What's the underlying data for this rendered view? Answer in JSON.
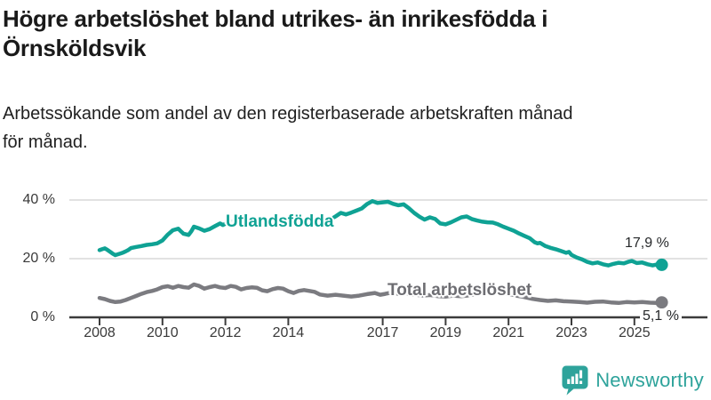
{
  "header": {
    "title_lines": [
      "Högre arbetslöshet bland utrikes- än inrikesfödda i",
      "Örnsköldsvik"
    ],
    "subtitle_lines": [
      "Arbetssökande som andel av den registerbaserade arbetskraften månad",
      "för månad."
    ]
  },
  "chart_data": {
    "type": "line",
    "title": "Högre arbetslöshet bland utrikes- än inrikesfödda i Örnsköldsvik",
    "subtitle": "Arbetssökande som andel av den registerbaserade arbetskraften månad för månad.",
    "x_unit": "år (månadsdata)",
    "y_unit": "% av den registerbaserade arbetskraften",
    "ylim": [
      0,
      42
    ],
    "xlim": [
      2007.9,
      2025.9
    ],
    "grid": "horizontal",
    "legend_position": "inline-labels",
    "x_ticks": [
      {
        "year": 2008,
        "label": "2008"
      },
      {
        "year": 2010,
        "label": "2010"
      },
      {
        "year": 2012,
        "label": "2012"
      },
      {
        "year": 2014,
        "label": "2014"
      },
      {
        "year": 2017,
        "label": "2017"
      },
      {
        "year": 2019,
        "label": "2019"
      },
      {
        "year": 2021,
        "label": "2021"
      },
      {
        "year": 2023,
        "label": "2023"
      },
      {
        "year": 2025,
        "label": "2025"
      }
    ],
    "y_ticks": [
      {
        "value": 0,
        "label": "0 %"
      },
      {
        "value": 20,
        "label": "20 %"
      },
      {
        "value": 40,
        "label": "40 %"
      }
    ],
    "series": [
      {
        "name": "Utlandsfödda",
        "color": "#0fa294",
        "end_label": "17,9 %",
        "end_value": 17.9,
        "points": [
          [
            2008,
            22.9
          ],
          [
            2008.08,
            23.2
          ],
          [
            2008.17,
            23.5
          ],
          [
            2008.25,
            23
          ],
          [
            2008.33,
            22.4
          ],
          [
            2008.42,
            21.7
          ],
          [
            2008.5,
            21.2
          ],
          [
            2008.58,
            21.5
          ],
          [
            2008.67,
            21.8
          ],
          [
            2008.75,
            22.1
          ],
          [
            2008.83,
            22.5
          ],
          [
            2008.92,
            23
          ],
          [
            2009,
            23.6
          ],
          [
            2009.17,
            24
          ],
          [
            2009.33,
            24.3
          ],
          [
            2009.5,
            24.7
          ],
          [
            2009.67,
            24.9
          ],
          [
            2009.83,
            25.2
          ],
          [
            2010,
            26.2
          ],
          [
            2010.17,
            28.2
          ],
          [
            2010.33,
            29.7
          ],
          [
            2010.5,
            30.2
          ],
          [
            2010.58,
            29.4
          ],
          [
            2010.67,
            28.5
          ],
          [
            2010.83,
            28.1
          ],
          [
            2010.92,
            29.4
          ],
          [
            2011,
            30.9
          ],
          [
            2011.17,
            30.3
          ],
          [
            2011.33,
            29.5
          ],
          [
            2011.5,
            30.1
          ],
          [
            2011.67,
            31.1
          ],
          [
            2011.83,
            32
          ],
          [
            2011.92,
            31.5
          ],
          [
            2012,
            31.9
          ],
          [
            2012.17,
            32.5
          ],
          [
            2012.33,
            33.1
          ],
          [
            2012.5,
            32.6
          ],
          [
            2012.67,
            32.1
          ],
          [
            2012.83,
            31.7
          ],
          [
            2013,
            31.4
          ],
          [
            2013.25,
            31.9
          ],
          [
            2013.5,
            31.6
          ],
          [
            2013.75,
            32.1
          ],
          [
            2014,
            31.9
          ],
          [
            2014.25,
            32.4
          ],
          [
            2014.5,
            32.8
          ],
          [
            2014.75,
            32.2
          ],
          [
            2015,
            31.8
          ],
          [
            2015.25,
            32.8
          ],
          [
            2015.5,
            34.4
          ],
          [
            2015.67,
            35.6
          ],
          [
            2015.83,
            35.1
          ],
          [
            2016,
            35.7
          ],
          [
            2016.17,
            36.4
          ],
          [
            2016.33,
            37.1
          ],
          [
            2016.5,
            38.6
          ],
          [
            2016.67,
            39.6
          ],
          [
            2016.83,
            39
          ],
          [
            2017,
            39.2
          ],
          [
            2017.17,
            39.4
          ],
          [
            2017.33,
            38.7
          ],
          [
            2017.5,
            38.2
          ],
          [
            2017.67,
            38.5
          ],
          [
            2017.83,
            37.2
          ],
          [
            2018,
            35.6
          ],
          [
            2018.17,
            34.3
          ],
          [
            2018.33,
            33.3
          ],
          [
            2018.5,
            34.1
          ],
          [
            2018.67,
            33.5
          ],
          [
            2018.83,
            32
          ],
          [
            2019,
            31.7
          ],
          [
            2019.17,
            32.4
          ],
          [
            2019.33,
            33.2
          ],
          [
            2019.5,
            34.1
          ],
          [
            2019.67,
            34.4
          ],
          [
            2019.83,
            33.5
          ],
          [
            2020,
            33
          ],
          [
            2020.17,
            32.6
          ],
          [
            2020.33,
            32.4
          ],
          [
            2020.5,
            32.3
          ],
          [
            2020.67,
            31.7
          ],
          [
            2020.83,
            30.9
          ],
          [
            2021,
            30.2
          ],
          [
            2021.17,
            29.5
          ],
          [
            2021.33,
            28.6
          ],
          [
            2021.5,
            27.8
          ],
          [
            2021.67,
            27
          ],
          [
            2021.83,
            25.6
          ],
          [
            2021.92,
            25.2
          ],
          [
            2022,
            25.4
          ],
          [
            2022.17,
            24.3
          ],
          [
            2022.33,
            23.7
          ],
          [
            2022.5,
            23.2
          ],
          [
            2022.67,
            22.6
          ],
          [
            2022.83,
            22
          ],
          [
            2022.92,
            22.3
          ],
          [
            2023,
            21.3
          ],
          [
            2023.17,
            20.4
          ],
          [
            2023.33,
            19.8
          ],
          [
            2023.5,
            18.9
          ],
          [
            2023.67,
            18.4
          ],
          [
            2023.83,
            18.7
          ],
          [
            2024,
            18.1
          ],
          [
            2024.17,
            17.7
          ],
          [
            2024.33,
            18.2
          ],
          [
            2024.5,
            18.6
          ],
          [
            2024.67,
            18.4
          ],
          [
            2024.83,
            19
          ],
          [
            2024.92,
            19.2
          ],
          [
            2025.08,
            18.5
          ],
          [
            2025.25,
            18.7
          ],
          [
            2025.42,
            18.1
          ],
          [
            2025.58,
            17.7
          ],
          [
            2025.75,
            18.1
          ],
          [
            2025.87,
            17.9
          ]
        ]
      },
      {
        "name": "Total arbetslöshet",
        "color": "#7b7b80",
        "label_color": "#6d6d72",
        "end_label": "5,1 %",
        "end_value": 5.1,
        "points": [
          [
            2008,
            6.6
          ],
          [
            2008.17,
            6.2
          ],
          [
            2008.33,
            5.6
          ],
          [
            2008.5,
            5.2
          ],
          [
            2008.67,
            5.4
          ],
          [
            2008.83,
            5.9
          ],
          [
            2009,
            6.6
          ],
          [
            2009.17,
            7.3
          ],
          [
            2009.33,
            8
          ],
          [
            2009.5,
            8.6
          ],
          [
            2009.67,
            9
          ],
          [
            2009.83,
            9.5
          ],
          [
            2010,
            10.3
          ],
          [
            2010.17,
            10.6
          ],
          [
            2010.33,
            10.1
          ],
          [
            2010.5,
            10.7
          ],
          [
            2010.67,
            10.3
          ],
          [
            2010.83,
            10.1
          ],
          [
            2011,
            11.2
          ],
          [
            2011.17,
            10.7
          ],
          [
            2011.33,
            9.8
          ],
          [
            2011.5,
            10.3
          ],
          [
            2011.67,
            10.7
          ],
          [
            2011.83,
            10.2
          ],
          [
            2012,
            10
          ],
          [
            2012.17,
            10.7
          ],
          [
            2012.33,
            10.4
          ],
          [
            2012.5,
            9.5
          ],
          [
            2012.67,
            10
          ],
          [
            2012.83,
            10.2
          ],
          [
            2013,
            10.1
          ],
          [
            2013.17,
            9.2
          ],
          [
            2013.33,
            8.9
          ],
          [
            2013.5,
            9.6
          ],
          [
            2013.67,
            10
          ],
          [
            2013.83,
            9.8
          ],
          [
            2014,
            8.9
          ],
          [
            2014.17,
            8.3
          ],
          [
            2014.33,
            9
          ],
          [
            2014.5,
            9.3
          ],
          [
            2014.67,
            9
          ],
          [
            2014.83,
            8.7
          ],
          [
            2015,
            7.8
          ],
          [
            2015.25,
            7.4
          ],
          [
            2015.5,
            7.7
          ],
          [
            2015.75,
            7.4
          ],
          [
            2016,
            7.1
          ],
          [
            2016.25,
            7.4
          ],
          [
            2016.5,
            7.9
          ],
          [
            2016.75,
            8.3
          ],
          [
            2016.92,
            7.7
          ],
          [
            2017.08,
            8
          ],
          [
            2017.25,
            8.4
          ],
          [
            2017.5,
            8
          ],
          [
            2017.75,
            8.2
          ],
          [
            2018,
            7.8
          ],
          [
            2018.25,
            7.4
          ],
          [
            2018.5,
            7.6
          ],
          [
            2018.75,
            7.2
          ],
          [
            2019,
            7.1
          ],
          [
            2019.25,
            7.4
          ],
          [
            2019.5,
            7.2
          ],
          [
            2019.75,
            7.5
          ],
          [
            2020,
            8
          ],
          [
            2020.25,
            8.7
          ],
          [
            2020.5,
            8.9
          ],
          [
            2020.75,
            8.5
          ],
          [
            2021,
            8
          ],
          [
            2021.25,
            7.4
          ],
          [
            2021.5,
            6.9
          ],
          [
            2021.75,
            6.3
          ],
          [
            2022,
            5.9
          ],
          [
            2022.25,
            5.6
          ],
          [
            2022.5,
            5.8
          ],
          [
            2022.75,
            5.5
          ],
          [
            2023,
            5.4
          ],
          [
            2023.25,
            5.2
          ],
          [
            2023.5,
            5
          ],
          [
            2023.75,
            5.3
          ],
          [
            2024,
            5.4
          ],
          [
            2024.25,
            5.1
          ],
          [
            2024.5,
            4.9
          ],
          [
            2024.75,
            5.2
          ],
          [
            2025,
            5.1
          ],
          [
            2025.25,
            5.2
          ],
          [
            2025.5,
            5
          ],
          [
            2025.7,
            4.9
          ],
          [
            2025.87,
            5.1
          ]
        ]
      }
    ],
    "colors": {
      "grid": "#d9d9d9",
      "axis": "#3c3c3c",
      "tick_text": "#3a3a3a"
    }
  },
  "footer": {
    "brand": "Newsworthy",
    "brand_color": "#2ea39b",
    "icon": "newsworthy-speech-bubble-bar-chart-icon"
  }
}
